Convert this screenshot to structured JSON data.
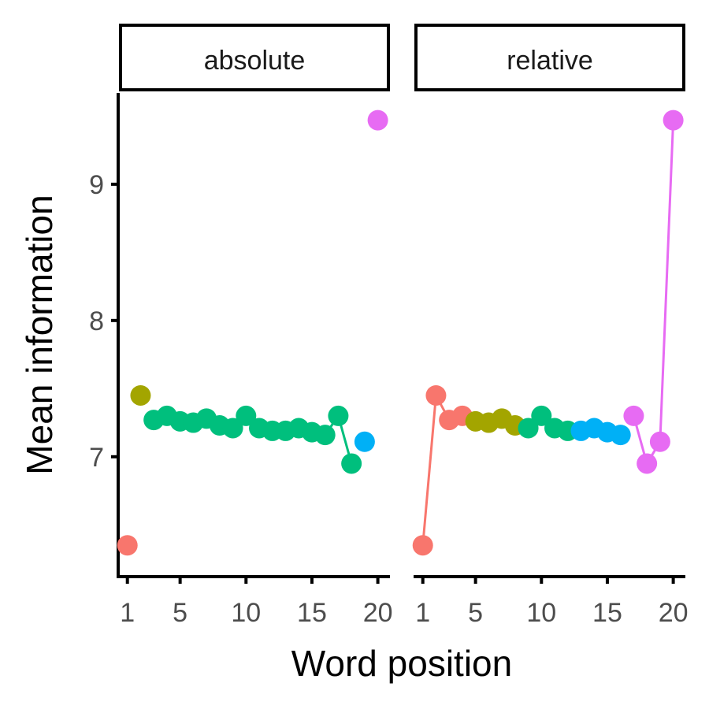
{
  "chart_data": {
    "type": "scatter",
    "xlabel": "Word position",
    "ylabel": "Mean information",
    "xlim": [
      0.3,
      20.8
    ],
    "ylim": [
      6.12,
      9.67
    ],
    "x_ticks": [
      1,
      5,
      10,
      15,
      20
    ],
    "y_ticks": [
      7,
      8,
      9
    ],
    "grid": false,
    "legend": "none",
    "panels": [
      {
        "label": "absolute",
        "series": [
          {
            "color": "#F8766D",
            "points": [
              [
                1,
                6.35
              ]
            ]
          },
          {
            "color": "#A3A500",
            "points": [
              [
                2,
                7.45
              ]
            ]
          },
          {
            "color": "#00BF7D",
            "points": [
              [
                3,
                7.27
              ],
              [
                4,
                7.3
              ],
              [
                5,
                7.26
              ],
              [
                6,
                7.25
              ],
              [
                7,
                7.28
              ],
              [
                8,
                7.23
              ],
              [
                9,
                7.21
              ],
              [
                10,
                7.3
              ],
              [
                11,
                7.21
              ],
              [
                12,
                7.19
              ],
              [
                13,
                7.19
              ],
              [
                14,
                7.21
              ],
              [
                15,
                7.18
              ],
              [
                16,
                7.16
              ],
              [
                17,
                7.3
              ],
              [
                18,
                6.95
              ]
            ]
          },
          {
            "color": "#00B0F6",
            "points": [
              [
                19,
                7.11
              ]
            ]
          },
          {
            "color": "#E76BF3",
            "points": [
              [
                20,
                9.47
              ]
            ]
          }
        ]
      },
      {
        "label": "relative",
        "series": [
          {
            "color": "#F8766D",
            "points": [
              [
                1,
                6.35
              ],
              [
                2,
                7.45
              ],
              [
                3,
                7.27
              ],
              [
                4,
                7.3
              ]
            ]
          },
          {
            "color": "#A3A500",
            "points": [
              [
                5,
                7.26
              ],
              [
                6,
                7.25
              ],
              [
                7,
                7.28
              ],
              [
                8,
                7.23
              ]
            ]
          },
          {
            "color": "#00BF7D",
            "points": [
              [
                9,
                7.21
              ],
              [
                10,
                7.3
              ],
              [
                11,
                7.21
              ],
              [
                12,
                7.19
              ]
            ]
          },
          {
            "color": "#00B0F6",
            "points": [
              [
                13,
                7.19
              ],
              [
                14,
                7.21
              ],
              [
                15,
                7.18
              ],
              [
                16,
                7.16
              ]
            ]
          },
          {
            "color": "#E76BF3",
            "points": [
              [
                17,
                7.3
              ],
              [
                18,
                6.95
              ],
              [
                19,
                7.11
              ],
              [
                20,
                9.47
              ]
            ]
          }
        ]
      }
    ]
  }
}
